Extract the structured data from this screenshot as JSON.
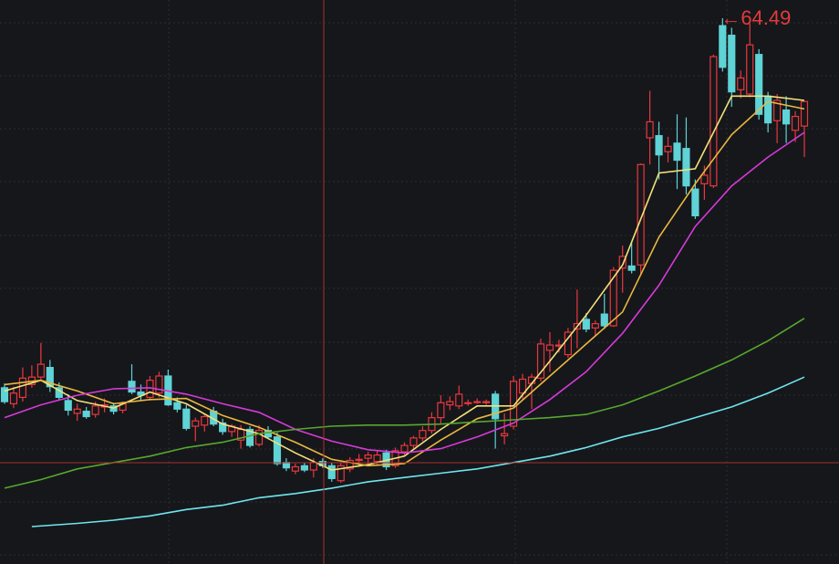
{
  "chart_data": {
    "type": "candlestick",
    "up_color": "#e8383d",
    "down_color": "#5fd3d6",
    "xlim": [
      -0.5,
      88.5
    ],
    "ylim": [
      13.4,
      66.2
    ],
    "grid": true,
    "open": [
      29.9,
      28.4,
      29.0,
      30.2,
      30.9,
      31.8,
      29.9,
      28.7,
      27.5,
      27.7,
      27.4,
      28.1,
      28.2,
      27.8,
      30.5,
      29.5,
      29.0,
      29.4,
      31.0,
      28.5,
      27.9,
      26.3,
      26.4,
      27.7,
      26.6,
      25.8,
      25.0,
      26.0,
      24.6,
      25.9,
      25.3,
      22.9,
      22.1,
      22.6,
      22.2,
      23.0,
      22.6,
      21.2,
      22.3,
      23.1,
      23.3,
      23.0,
      23.8,
      22.6,
      23.9,
      24.5,
      25.2,
      25.9,
      27.1,
      28.3,
      28.2,
      28.5,
      28.6,
      28.5,
      29.3,
      25.4,
      26.3,
      29.4,
      30.3,
      30.8,
      33.4,
      33.8,
      33.0,
      35.4,
      36.3,
      35.5,
      36.8,
      35.7,
      41.1,
      41.3,
      41.4,
      53.3,
      53.5,
      52.0,
      52.8,
      52.3,
      48.5,
      49.0,
      48.8,
      63.8,
      62.9,
      57.8,
      57.4,
      61.1,
      57.2,
      54.9,
      55.9,
      54.0,
      54.4
    ],
    "high": [
      30.3,
      30.0,
      31.8,
      32.0,
      34.1,
      32.5,
      30.4,
      29.3,
      28.4,
      28.1,
      28.6,
      28.9,
      28.5,
      28.6,
      32.1,
      30.2,
      31.0,
      31.4,
      31.6,
      29.0,
      28.3,
      27.1,
      27.4,
      28.1,
      27.0,
      26.5,
      26.4,
      26.3,
      26.4,
      26.3,
      25.7,
      23.3,
      22.8,
      22.9,
      23.3,
      23.3,
      22.9,
      22.9,
      23.4,
      23.7,
      23.9,
      24.0,
      24.1,
      24.3,
      24.8,
      25.4,
      26.3,
      27.6,
      29.2,
      29.1,
      30.1,
      28.8,
      28.9,
      28.8,
      29.6,
      27.5,
      31.0,
      31.2,
      31.2,
      34.5,
      35.1,
      34.4,
      35.5,
      39.1,
      36.9,
      36.2,
      38.7,
      41.2,
      43.2,
      43.5,
      50.9,
      57.7,
      54.8,
      53.4,
      55.5,
      55.2,
      49.4,
      50.7,
      61.1,
      64.49,
      63.6,
      59.6,
      64.0,
      61.6,
      57.6,
      57.4,
      57.2,
      55.8,
      56.7
    ],
    "low": [
      28.4,
      28.0,
      28.6,
      29.9,
      30.5,
      29.5,
      28.7,
      27.3,
      26.8,
      27.0,
      27.1,
      27.6,
      27.4,
      27.5,
      29.3,
      28.7,
      28.7,
      29.0,
      28.2,
      27.6,
      25.9,
      24.9,
      25.8,
      26.3,
      25.5,
      25.3,
      24.2,
      24.3,
      24.4,
      25.1,
      22.6,
      22.1,
      21.8,
      22.0,
      21.5,
      22.4,
      21.1,
      21.0,
      22.0,
      22.5,
      22.8,
      22.7,
      22.2,
      22.4,
      23.6,
      24.2,
      24.9,
      25.6,
      26.5,
      27.8,
      27.9,
      28.2,
      28.4,
      28.3,
      24.2,
      24.6,
      26.0,
      28.8,
      27.9,
      30.5,
      31.4,
      33.2,
      32.7,
      33.6,
      35.1,
      34.8,
      35.4,
      35.6,
      38.8,
      40.6,
      40.4,
      50.8,
      49.4,
      51.0,
      48.5,
      48.0,
      45.7,
      47.5,
      48.6,
      59.5,
      56.2,
      57.0,
      57.1,
      55.0,
      53.8,
      52.8,
      52.8,
      52.9,
      51.5
    ],
    "close": [
      28.6,
      29.4,
      30.8,
      30.9,
      32.1,
      30.0,
      29.0,
      27.8,
      27.9,
      27.2,
      28.2,
      28.3,
      27.7,
      28.4,
      29.5,
      29.2,
      30.6,
      31.0,
      28.3,
      27.9,
      26.1,
      26.8,
      27.2,
      26.5,
      25.8,
      26.3,
      26.0,
      24.5,
      25.9,
      25.3,
      22.8,
      22.4,
      22.5,
      22.2,
      22.9,
      22.6,
      21.4,
      22.6,
      23.1,
      23.2,
      23.6,
      23.6,
      22.5,
      24.0,
      24.5,
      25.2,
      25.9,
      27.1,
      28.5,
      28.6,
      29.3,
      28.5,
      28.6,
      28.6,
      27.0,
      25.6,
      30.5,
      30.7,
      30.9,
      34.0,
      33.9,
      33.9,
      35.1,
      35.9,
      35.4,
      35.9,
      35.7,
      40.9,
      42.2,
      40.9,
      50.8,
      54.8,
      51.7,
      52.5,
      51.2,
      48.8,
      46.0,
      49.8,
      60.9,
      59.9,
      57.6,
      58.9,
      62.0,
      55.5,
      54.7,
      56.8,
      54.6,
      55.3,
      56.7
    ],
    "lines": [
      {
        "color": "#f3e27a",
        "x": [
          0,
          4,
          8,
          12,
          16,
          20,
          24,
          28,
          32,
          36,
          40,
          44,
          48,
          52,
          56,
          60,
          64,
          68,
          72,
          76,
          80,
          84,
          88
        ],
        "values": [
          29.6,
          30.6,
          28.7,
          28.0,
          29.5,
          28.4,
          26.5,
          25.6,
          23.8,
          22.2,
          22.7,
          23.5,
          26.0,
          28.2,
          28.2,
          32.4,
          36.7,
          41.4,
          50.0,
          50.4,
          57.2,
          57.2,
          56.8
        ]
      },
      {
        "color": "#e9b840",
        "x": [
          0,
          4,
          8,
          12,
          16,
          20,
          24,
          28,
          32,
          36,
          40,
          44,
          48,
          52,
          56,
          60,
          64,
          68,
          72,
          76,
          80,
          84,
          88
        ],
        "values": [
          30.2,
          30.6,
          29.6,
          28.4,
          28.8,
          28.9,
          27.3,
          26.2,
          24.8,
          23.2,
          22.6,
          22.8,
          25.0,
          27.0,
          28.0,
          31.0,
          34.0,
          37.0,
          44.0,
          49.0,
          53.6,
          56.7,
          56.0
        ]
      },
      {
        "color": "#d63ad8",
        "x": [
          0,
          4,
          8,
          12,
          16,
          20,
          24,
          28,
          32,
          36,
          40,
          44,
          48,
          52,
          56,
          60,
          64,
          68,
          72,
          76,
          80,
          84,
          88
        ],
        "values": [
          27.1,
          28.3,
          29.2,
          29.8,
          29.9,
          29.3,
          28.4,
          27.6,
          26.0,
          24.9,
          24.1,
          23.8,
          24.2,
          25.3,
          26.6,
          28.8,
          31.4,
          35.0,
          39.5,
          45.0,
          48.8,
          51.5,
          53.8
        ]
      },
      {
        "color": "#56a82f",
        "x": [
          0,
          4,
          8,
          12,
          16,
          20,
          24,
          28,
          32,
          36,
          40,
          44,
          48,
          52,
          56,
          60,
          64,
          68,
          72,
          76,
          80,
          84,
          88
        ],
        "values": [
          20.5,
          21.3,
          22.3,
          22.9,
          23.5,
          24.3,
          24.8,
          25.6,
          26.0,
          26.3,
          26.4,
          26.4,
          26.5,
          26.7,
          26.9,
          27.1,
          27.4,
          28.3,
          29.6,
          31.0,
          32.5,
          34.3,
          36.4
        ]
      },
      {
        "color": "#6ee6ee",
        "x": [
          3,
          8,
          12,
          16,
          20,
          24,
          28,
          32,
          36,
          40,
          44,
          48,
          52,
          56,
          60,
          64,
          68,
          72,
          76,
          80,
          84,
          88
        ],
        "values": [
          16.9,
          17.2,
          17.5,
          17.9,
          18.5,
          18.9,
          19.6,
          20.0,
          20.5,
          21.1,
          21.5,
          21.9,
          22.3,
          22.9,
          23.5,
          24.3,
          25.3,
          26.1,
          27.1,
          28.1,
          29.4,
          30.9
        ]
      }
    ],
    "annotations": [
      {
        "text": "←64.49",
        "at": 79
      }
    ]
  }
}
